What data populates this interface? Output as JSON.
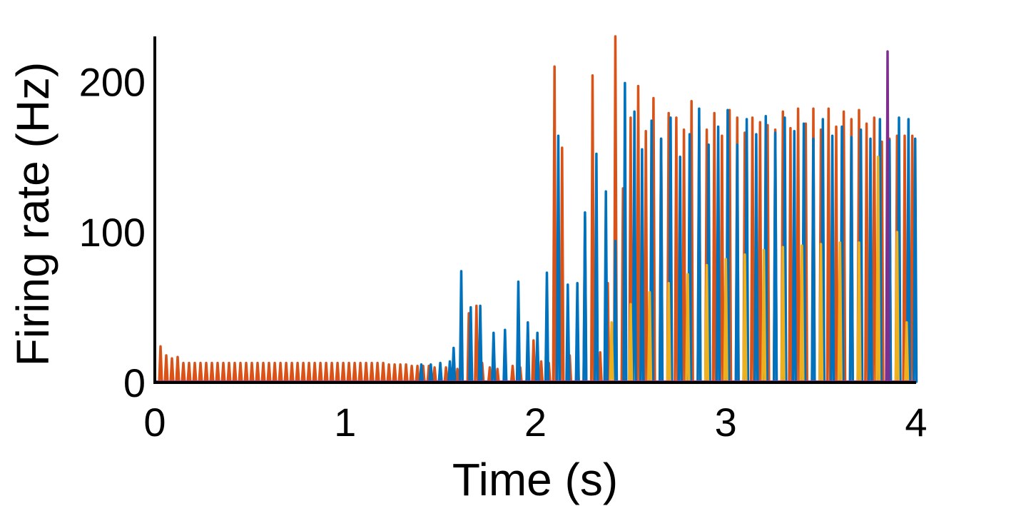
{
  "chart_data": {
    "type": "line",
    "title": "",
    "xlabel": "Time (s)",
    "ylabel": "Firing rate (Hz)",
    "xlim": [
      0,
      4
    ],
    "ylim": [
      0,
      230
    ],
    "xticks": [
      0,
      1,
      2,
      3,
      4
    ],
    "xtick_labels": [
      "0",
      "1",
      "2",
      "3",
      "4"
    ],
    "yticks": [
      0,
      100,
      200
    ],
    "ytick_labels": [
      "0",
      "100",
      "200"
    ],
    "grid": false,
    "legend": "none",
    "colors": {
      "blue": "#0072BD",
      "orange": "#D95319",
      "yellow": "#EDB120",
      "purple": "#7E2F8E",
      "axis": "#000000"
    },
    "series": [
      {
        "color": "orange",
        "baseline": 0.5,
        "x": [
          0.03,
          0.06,
          0.09,
          0.12,
          0.15,
          0.18,
          0.21,
          0.24,
          0.27,
          0.3,
          0.33,
          0.36,
          0.39,
          0.42,
          0.45,
          0.48,
          0.51,
          0.54,
          0.57,
          0.6,
          0.63,
          0.66,
          0.69,
          0.72,
          0.75,
          0.78,
          0.81,
          0.84,
          0.87,
          0.9,
          0.93,
          0.96,
          0.99,
          1.02,
          1.05,
          1.08,
          1.11,
          1.14,
          1.17,
          1.2,
          1.23,
          1.26,
          1.29,
          1.32,
          1.35,
          1.38,
          1.41,
          1.44,
          1.47,
          1.5,
          1.53,
          1.56,
          1.59,
          1.65,
          1.69,
          1.72,
          1.76,
          1.8,
          1.84,
          1.88,
          1.92,
          1.96,
          1.99,
          2.03,
          2.07,
          2.1,
          2.14,
          2.18,
          2.22,
          2.26,
          2.3,
          2.34,
          2.38,
          2.42,
          2.46,
          2.5,
          2.54,
          2.58,
          2.62,
          2.66,
          2.7,
          2.74,
          2.78,
          2.82,
          2.86,
          2.9,
          2.94,
          2.98,
          3.02,
          3.06,
          3.1,
          3.14,
          3.18,
          3.22,
          3.26,
          3.3,
          3.34,
          3.38,
          3.42,
          3.46,
          3.5,
          3.54,
          3.58,
          3.62,
          3.66,
          3.7,
          3.74,
          3.78,
          3.82,
          3.86,
          3.9,
          3.94,
          3.98
        ],
        "y": [
          24,
          18,
          16,
          17,
          13,
          13,
          13,
          13,
          13,
          13,
          13,
          13,
          13,
          13,
          13,
          13,
          13,
          13,
          13,
          13,
          13,
          13,
          13,
          13,
          13,
          13,
          13,
          13,
          13,
          13,
          13,
          13,
          13,
          13,
          13,
          13,
          13,
          13,
          13,
          13,
          12,
          12,
          12,
          12,
          11,
          11,
          11,
          11,
          10,
          10,
          10,
          9,
          9,
          46,
          51,
          13,
          10,
          9,
          10,
          11,
          10,
          12,
          28,
          14,
          13,
          210,
          156,
          18,
          22,
          110,
          204,
          20,
          66,
          230,
          129,
          176,
          197,
          167,
          189,
          162,
          179,
          176,
          168,
          187,
          170,
          168,
          179,
          164,
          181,
          176,
          166,
          176,
          173,
          171,
          168,
          180,
          169,
          182,
          172,
          182,
          168,
          182,
          170,
          180,
          175,
          181,
          172,
          176,
          160,
          162,
          164,
          164,
          164
        ]
      },
      {
        "color": "blue",
        "baseline": 0.5,
        "x": [
          1.4,
          1.45,
          1.5,
          1.55,
          1.57,
          1.61,
          1.66,
          1.71,
          1.78,
          1.84,
          1.91,
          1.96,
          2.01,
          2.06,
          2.12,
          2.17,
          2.22,
          2.26,
          2.32,
          2.37,
          2.42,
          2.47,
          2.52,
          2.56,
          2.61,
          2.66,
          2.71,
          2.76,
          2.81,
          2.86,
          2.91,
          2.96,
          3.01,
          3.06,
          3.11,
          3.16,
          3.21,
          3.26,
          3.31,
          3.36,
          3.41,
          3.46,
          3.51,
          3.56,
          3.61,
          3.66,
          3.71,
          3.76,
          3.81,
          3.86,
          3.91,
          3.96,
          3.995
        ],
        "y": [
          12,
          12,
          13,
          14,
          23,
          74,
          50,
          51,
          33,
          35,
          67,
          40,
          33,
          73,
          164,
          65,
          66,
          113,
          152,
          127,
          94,
          199,
          180,
          155,
          174,
          162,
          176,
          150,
          165,
          182,
          158,
          170,
          181,
          158,
          175,
          165,
          177,
          166,
          176,
          167,
          172,
          162,
          175,
          164,
          170,
          163,
          168,
          162,
          175,
          161,
          176,
          175,
          162
        ]
      },
      {
        "color": "yellow",
        "baseline": 0.5,
        "x": [
          2.4,
          2.5,
          2.6,
          2.7,
          2.8,
          2.9,
          3.0,
          3.1,
          3.2,
          3.3,
          3.4,
          3.5,
          3.6,
          3.7,
          3.8,
          3.9,
          3.95
        ],
        "y": [
          40,
          52,
          60,
          66,
          72,
          78,
          82,
          85,
          88,
          90,
          91,
          92,
          93,
          93,
          150,
          100,
          40
        ]
      },
      {
        "color": "purple",
        "baseline": 0.5,
        "x": [
          3.85
        ],
        "y": [
          220
        ]
      }
    ]
  }
}
